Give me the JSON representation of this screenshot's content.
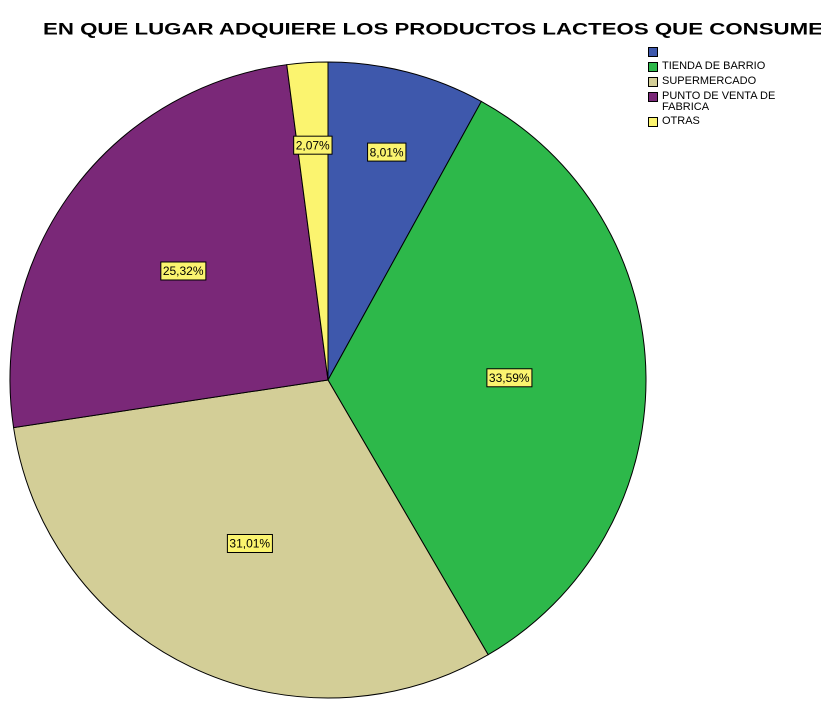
{
  "chart_data": {
    "type": "pie",
    "title": "EN QUE LUGAR ADQUIERE LOS PRODUCTOS LACTEOS QUE CONSUME",
    "categories": [
      null,
      "TIENDA DE BARRIO",
      "SUPERMERCADO",
      "PUNTO DE VENTA DE FABRICA",
      "OTRAS"
    ],
    "values": [
      8.01,
      33.59,
      31.01,
      25.32,
      2.07
    ],
    "value_labels": [
      "8,01%",
      "33,59%",
      "31,01%",
      "25,32%",
      "2,07%"
    ],
    "colors": [
      "#3e58ac",
      "#2db84a",
      "#d3ce97",
      "#7a2878",
      "#fbf46f"
    ],
    "legend": "top-right"
  }
}
